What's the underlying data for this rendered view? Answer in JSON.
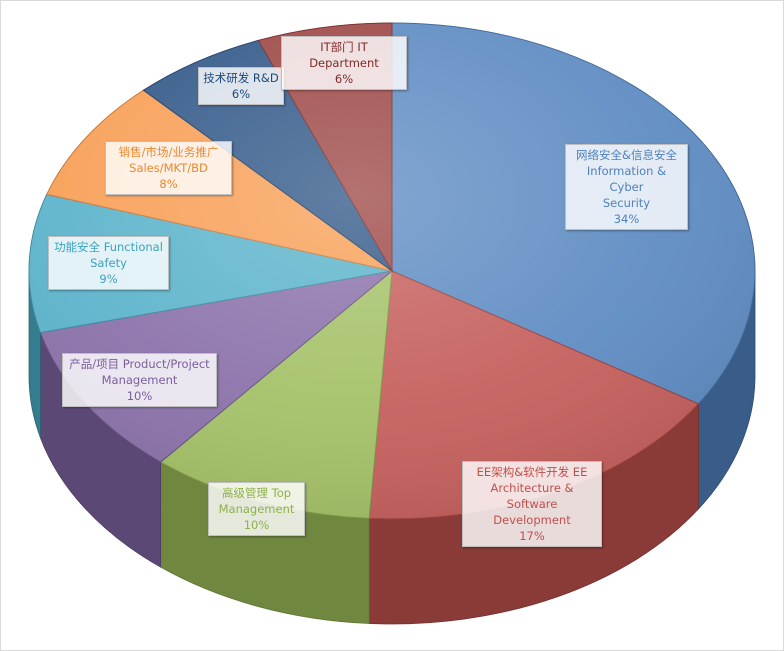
{
  "chart_data": {
    "type": "pie",
    "slices": [
      {
        "label": "网络安全&信息安全 Information & Cyber Security",
        "lines": [
          "网络安全&信息安全",
          "Information & Cyber",
          "Security"
        ],
        "value": 34,
        "pct_text": "34%",
        "color": "#4f81bd",
        "text_color": "#4f81bd"
      },
      {
        "label": "EE架构&软件开发 EE Architecture & Software Development",
        "lines": [
          "EE架构&软件开发  EE",
          "Architecture & Software",
          "Development"
        ],
        "value": 17,
        "pct_text": "17%",
        "color": "#c0504d",
        "text_color": "#c0504d"
      },
      {
        "label": "高级管理 Top Management",
        "lines": [
          "高级管理 Top",
          "Management"
        ],
        "value": 10,
        "pct_text": "10%",
        "color": "#9bbb59",
        "text_color": "#8fb04a"
      },
      {
        "label": "产品/项目 Product/Project Management",
        "lines": [
          "产品/项目  Product/Project",
          "Management"
        ],
        "value": 10,
        "pct_text": "10%",
        "color": "#8064a2",
        "text_color": "#7a5f9c"
      },
      {
        "label": "功能安全 Functional Safety",
        "lines": [
          "功能安全  Functional",
          "Safety"
        ],
        "value": 9,
        "pct_text": "9%",
        "color": "#4bacc6",
        "text_color": "#3ba2bd"
      },
      {
        "label": "销售/市场/业务推广 Sales/MKT/BD",
        "lines": [
          "销售/市场/业务推广",
          "Sales/MKT/BD"
        ],
        "value": 8,
        "pct_text": "8%",
        "color": "#f79646",
        "text_color": "#e8892f"
      },
      {
        "label": "技术研发 R&D",
        "lines": [
          "技术研发  R&D"
        ],
        "value": 6,
        "pct_text": "6%",
        "color": "#1f497d",
        "text_color": "#1f497d"
      },
      {
        "label": "IT部门 IT Department",
        "lines": [
          "IT部门  IT Department"
        ],
        "value": 6,
        "pct_text": "6%",
        "color": "#943634",
        "text_color": "#7f2a28"
      }
    ]
  }
}
